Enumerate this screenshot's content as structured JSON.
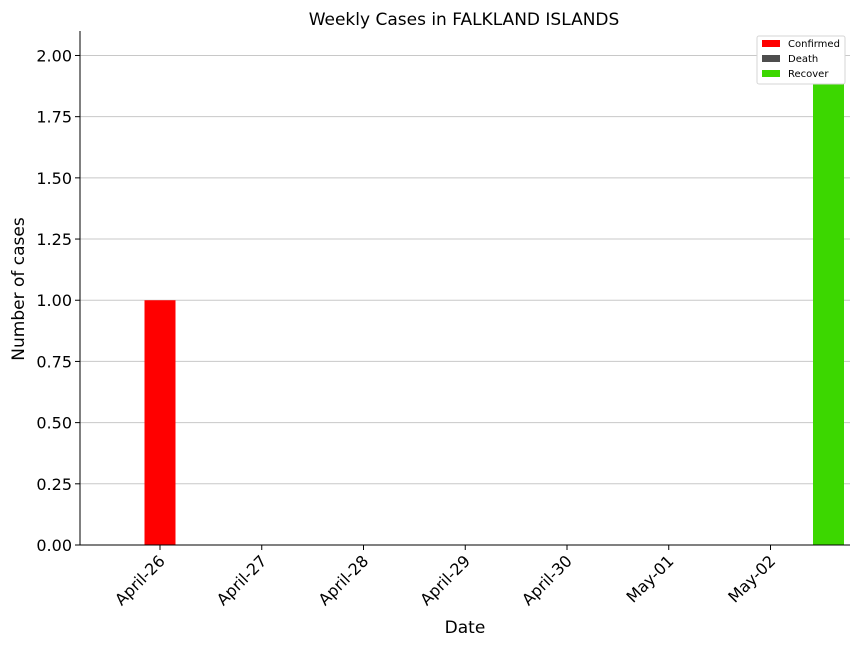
{
  "chart_data": {
    "type": "bar",
    "title": "Weekly Cases in FALKLAND ISLANDS",
    "xlabel": "Date",
    "ylabel": "Number of cases",
    "categories": [
      "April-26",
      "April-27",
      "April-28",
      "April-29",
      "April-30",
      "May-01",
      "May-02"
    ],
    "series": [
      {
        "name": "Confirmed",
        "color": "#ff0000",
        "values": [
          1,
          0,
          0,
          0,
          0,
          0,
          0
        ]
      },
      {
        "name": "Death",
        "color": "#4d4d4d",
        "values": [
          0,
          0,
          0,
          0,
          0,
          0,
          0
        ]
      },
      {
        "name": "Recover",
        "color": "#3cd700",
        "values": [
          0,
          0,
          0,
          0,
          0,
          0,
          2
        ]
      }
    ],
    "ylim": [
      0,
      2.1
    ],
    "yticks": [
      "0.00",
      "0.25",
      "0.50",
      "0.75",
      "1.00",
      "1.25",
      "1.50",
      "1.75",
      "2.00"
    ],
    "grid": "horizontal",
    "legend_position": "top-right"
  }
}
